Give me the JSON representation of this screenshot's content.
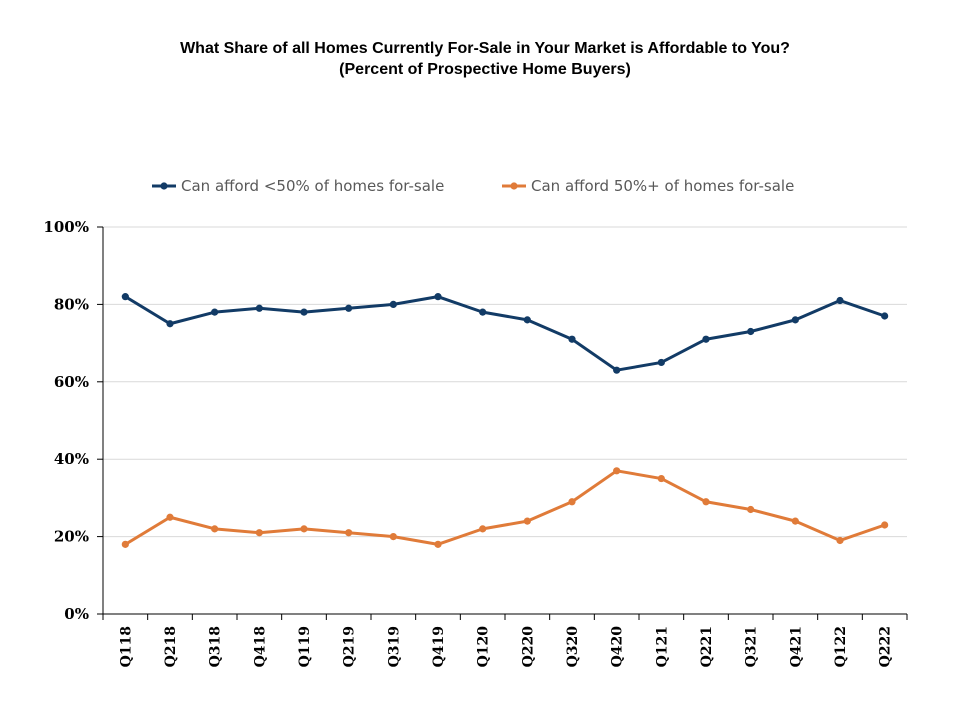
{
  "chart_data": {
    "type": "line",
    "title": "What Share of all Homes Currently For-Sale in Your Market is Affordable to You?",
    "subtitle": "(Percent of Prospective Home Buyers)",
    "categories": [
      "Q118",
      "Q218",
      "Q318",
      "Q418",
      "Q119",
      "Q219",
      "Q319",
      "Q419",
      "Q120",
      "Q220",
      "Q320",
      "Q420",
      "Q121",
      "Q221",
      "Q321",
      "Q421",
      "Q122",
      "Q222"
    ],
    "series": [
      {
        "name": "Can afford <50% of homes for-sale",
        "color": "#123b66",
        "values": [
          82,
          75,
          78,
          79,
          78,
          79,
          80,
          82,
          78,
          76,
          71,
          63,
          65,
          71,
          73,
          76,
          81,
          77
        ]
      },
      {
        "name": "Can afford 50%+ of homes for-sale",
        "color": "#e07b39",
        "values": [
          18,
          25,
          22,
          21,
          22,
          21,
          20,
          18,
          22,
          24,
          29,
          37,
          35,
          29,
          27,
          24,
          19,
          23
        ]
      }
    ],
    "ylim": [
      0,
      100
    ],
    "yticks": [
      "0%",
      "20%",
      "40%",
      "60%",
      "80%",
      "100%"
    ],
    "grid": true,
    "legend_position": "top"
  }
}
